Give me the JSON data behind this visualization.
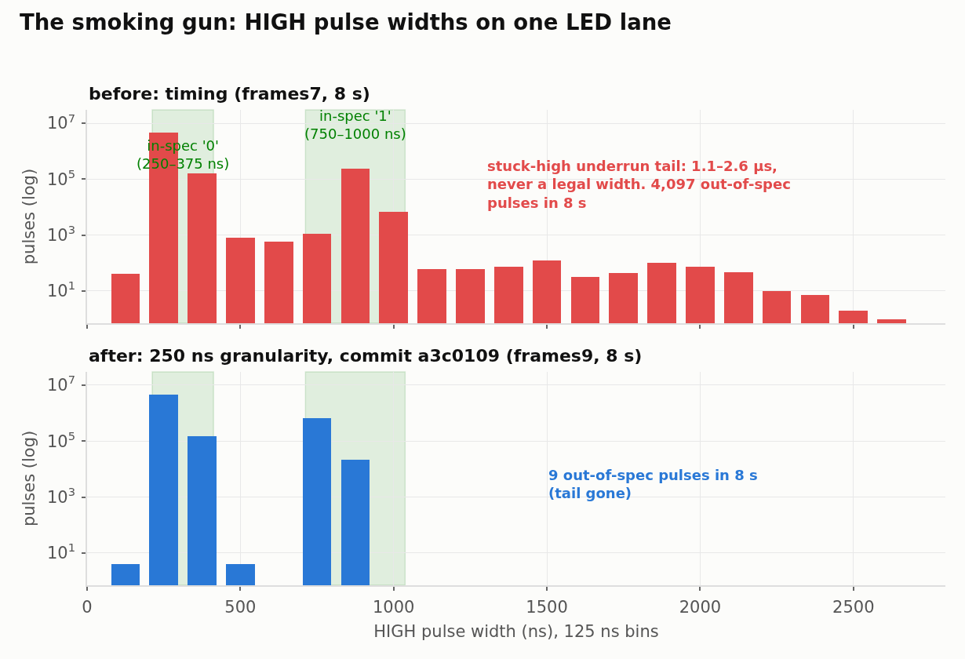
{
  "chart_data": [
    {
      "type": "bar",
      "title": "The smoking gun: HIGH pulse widths on one LED lane",
      "subtitle": "before: timing (frames7, 8 s)",
      "ylabel": "pulses (log)",
      "x": [
        125,
        250,
        375,
        500,
        625,
        750,
        875,
        1000,
        1125,
        1250,
        1375,
        1500,
        1625,
        1750,
        1875,
        2000,
        2125,
        2250,
        2375,
        2500,
        2625
      ],
      "values": [
        40,
        4600000,
        160000,
        800,
        580,
        1100,
        230000,
        6800,
        60,
        60,
        75,
        120,
        32,
        45,
        100,
        75,
        47,
        10,
        7,
        2,
        1
      ],
      "color": "#e24a4a",
      "xlim": [
        0,
        2800
      ],
      "xticks": [
        0,
        500,
        1000,
        1500,
        2000,
        2500
      ],
      "ylim": [
        0.7,
        30000000
      ],
      "yticks": [
        {
          "value": 10,
          "label": "10$^{1}$"
        },
        {
          "value": 1000,
          "label": "10$^{3}$"
        },
        {
          "value": 100000,
          "label": "10$^{5}$"
        },
        {
          "value": 10000000,
          "label": "10$^{7}$"
        }
      ],
      "log": true,
      "grid": true,
      "tick_labels": "y",
      "bands": [
        {
          "axis": "x",
          "from": 212.5,
          "to": 412.5,
          "label": "in-spec '0'\n(250–375 ns)",
          "color": "#008000"
        },
        {
          "axis": "x",
          "from": 712.5,
          "to": 1037.5,
          "label": "in-spec '1'\n(750–1000 ns)",
          "color": "#008000"
        }
      ],
      "annotations": [
        "stuck-high underrun tail: 1.1–2.6 µs,\nnever a legal width. 4,097 out-of-spec\npulses in 8 s"
      ]
    },
    {
      "type": "bar",
      "subtitle": "after: 250 ns granularity, commit a3c0109 (frames9, 8 s)",
      "xlabel": "HIGH pulse width (ns), 125 ns bins",
      "ylabel": "pulses (log)",
      "x": [
        125,
        250,
        375,
        500,
        625,
        750,
        875
      ],
      "values": [
        4,
        4600000,
        150000,
        4,
        null,
        660000,
        22000
      ],
      "color": "#2978d6",
      "xlim": [
        0,
        2800
      ],
      "xticks": [
        0,
        500,
        1000,
        1500,
        2000,
        2500
      ],
      "ylim": [
        0.7,
        30000000
      ],
      "yticks": [
        {
          "value": 10,
          "label": "10$^{1}$"
        },
        {
          "value": 1000,
          "label": "10$^{3}$"
        },
        {
          "value": 100000,
          "label": "10$^{5}$"
        },
        {
          "value": 10000000,
          "label": "10$^{7}$"
        }
      ],
      "log": true,
      "grid": true,
      "bands": [
        {
          "axis": "x",
          "from": 212.5,
          "to": 412.5,
          "color": "#008000"
        },
        {
          "axis": "x",
          "from": 712.5,
          "to": 1037.5,
          "color": "#008000"
        }
      ],
      "annotations": [
        "9 out-of-spec pulses in 8 s\n(tail gone)"
      ]
    }
  ]
}
